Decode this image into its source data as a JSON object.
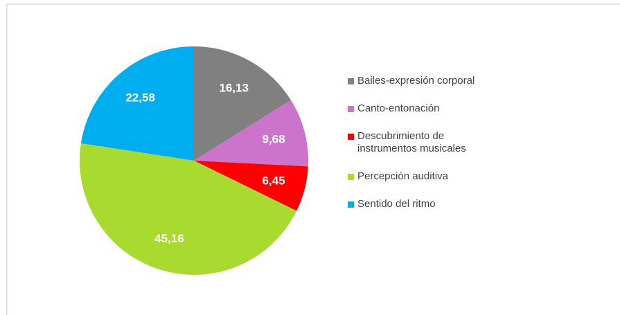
{
  "chart_data": {
    "type": "pie",
    "categories": [
      "Bailes-expresión corporal",
      "Canto-entonación",
      "Descubrimiento de instrumentos musicales",
      "Percepción auditiva",
      "Sentido del ritmo"
    ],
    "values": [
      16.13,
      9.68,
      6.45,
      45.16,
      22.58
    ],
    "value_labels": [
      "16,13",
      "9,68",
      "6,45",
      "45,16",
      "22,58"
    ],
    "colors": [
      "#808080",
      "#cc73cc",
      "#ff0000",
      "#a9da2f",
      "#00aeef"
    ],
    "legend": "right"
  }
}
